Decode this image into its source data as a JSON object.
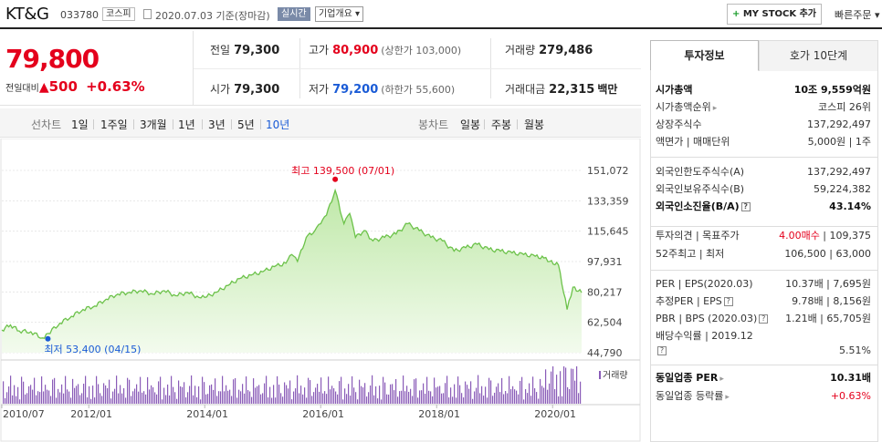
{
  "header": {
    "name": "KT&G",
    "code": "033780",
    "market": "코스피",
    "date": "2020.07.03  기준(장마감)",
    "realtime": "실시간",
    "corp_info": "기업개요 ▾",
    "mystock": "MY STOCK 추가",
    "quick_order": "빠른주문 ▾"
  },
  "price": {
    "current": "79,800",
    "diff_label": "전일대비",
    "diff_arrow": "▲",
    "diff_value": "500",
    "diff_pct": "+0.63%"
  },
  "quote": {
    "prev_label": "전일",
    "prev": "79,300",
    "high_label": "고가",
    "high": "80,900",
    "upper_limit": "(상한가 103,000)",
    "volume_label": "거래량",
    "volume": "279,486",
    "open_label": "시가",
    "open": "79,300",
    "low_label": "저가",
    "low": "79,200",
    "lower_limit": "(하한가 55,600)",
    "amount_label": "거래대금",
    "amount": "22,315",
    "amount_unit": "백만"
  },
  "period": {
    "line_label": "선차트",
    "line_items": [
      "1일",
      "1주일",
      "3개월",
      "1년",
      "3년",
      "5년",
      "10년"
    ],
    "active": "10년",
    "candle_label": "봉차트",
    "candle_items": [
      "일봉",
      "주봉",
      "월봉"
    ]
  },
  "chart_data": {
    "type": "area",
    "y_ticks": [
      "151,072",
      "133,359",
      "115,645",
      "97,931",
      "80,217",
      "62,504",
      "44,790"
    ],
    "ylim": [
      44790,
      151072
    ],
    "x_ticks": [
      "2010/07",
      "2012/01",
      "2014/01",
      "2016/01",
      "2018/01",
      "2020/01"
    ],
    "max_label": "최고 139,500 (07/01)",
    "min_label": "최저 53,400 (04/15)",
    "volume_label": "거래량",
    "line_color": "#6cc24a",
    "fill_color": "#e6f7d9",
    "x": [
      2010.5,
      2010.65,
      2010.8,
      2011.0,
      2011.2,
      2011.3,
      2011.5,
      2011.7,
      2011.9,
      2012.1,
      2012.3,
      2012.5,
      2012.7,
      2012.9,
      2013.1,
      2013.3,
      2013.5,
      2013.7,
      2013.9,
      2014.0,
      2014.2,
      2014.4,
      2014.6,
      2014.8,
      2015.0,
      2015.2,
      2015.4,
      2015.5,
      2015.6,
      2015.75,
      2015.9,
      2016.0,
      2016.1,
      2016.25,
      2016.4,
      2016.5,
      2016.6,
      2016.75,
      2016.9,
      2017.1,
      2017.3,
      2017.5,
      2017.7,
      2017.9,
      2018.1,
      2018.3,
      2018.5,
      2018.7,
      2018.9,
      2019.1,
      2019.3,
      2019.5,
      2019.7,
      2019.85,
      2019.95,
      2020.1,
      2020.25,
      2020.35,
      2020.5
    ],
    "y": [
      58000,
      61000,
      57500,
      57000,
      53400,
      56000,
      62000,
      66000,
      70000,
      72000,
      76000,
      79000,
      80000,
      81000,
      79000,
      81000,
      78000,
      80000,
      77000,
      77000,
      80000,
      84000,
      88000,
      90000,
      92000,
      95000,
      97000,
      102000,
      98000,
      112000,
      116000,
      120000,
      125000,
      139500,
      120000,
      126000,
      112000,
      116000,
      110000,
      112000,
      114000,
      120000,
      116000,
      112000,
      110000,
      104000,
      106000,
      108000,
      105000,
      104000,
      103000,
      102000,
      101000,
      100000,
      98000,
      96000,
      70000,
      83000,
      79800
    ]
  },
  "invest": {
    "tab_on": "투자정보",
    "tab_off": "호가 10단계",
    "rows1": [
      {
        "l": "시가총액",
        "r": "10조 9,559억원",
        "bold": true
      },
      {
        "l": "시가총액순위",
        "r": "코스피 26위"
      },
      {
        "l": "상장주식수",
        "r": "137,292,497"
      },
      {
        "l": "액면가 | 매매단위",
        "r": "5,000원 | 1주"
      }
    ],
    "rows2": [
      {
        "l": "외국인한도주식수(A)",
        "r": "137,292,497"
      },
      {
        "l": "외국인보유주식수(B)",
        "r": "59,224,382"
      },
      {
        "l": "외국인소진율(B/A)",
        "r": "43.14%",
        "bold": true
      }
    ],
    "opinion_label": "투자의견 | 목표주가",
    "opinion_value": "4.00매수",
    "target_price": " | 109,375",
    "week52_label": "52주최고 | 최저",
    "week52_value": "106,500 | 63,000",
    "per_label": "PER | EPS(2020.03)",
    "per_value": "10.37배 | 7,695원",
    "est_per_label": "추정PER | EPS",
    "est_per_value": "9.78배 | 8,156원",
    "pbr_label": "PBR | BPS (2020.03)",
    "pbr_value": "1.21배 | 65,705원",
    "div_label": "배당수익률 | 2019.12",
    "div_value": "5.51%",
    "sector_per_label": "동일업종 PER",
    "sector_per_value": "10.31배",
    "sector_rate_label": "동일업종 등락률",
    "sector_rate_value": "+0.63%"
  }
}
